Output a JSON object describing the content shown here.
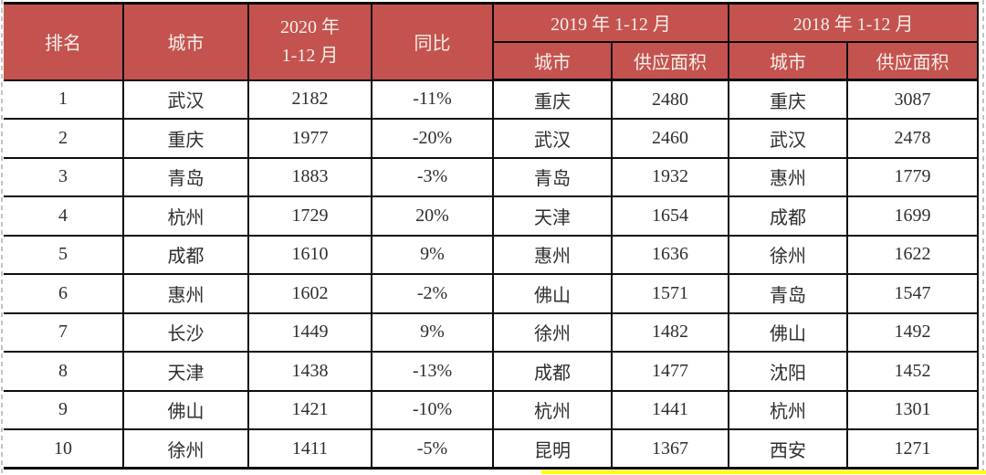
{
  "table": {
    "header": {
      "rank": "排名",
      "city": "城市",
      "col_2020_line1": "2020 年",
      "col_2020_line2": "1-12 月",
      "yoy": "同比",
      "group_2019": "2019 年 1-12 月",
      "group_2018": "2018 年 1-12 月",
      "sub_city_2019": "城市",
      "sub_supply_2019": "供应面积",
      "sub_city_2018": "城市",
      "sub_supply_2018": "供应面积"
    },
    "rows": [
      {
        "rank": "1",
        "city": "武汉",
        "supply_2020": "2182",
        "yoy": "-11%",
        "city_2019": "重庆",
        "supply_2019": "2480",
        "city_2018": "重庆",
        "supply_2018": "3087"
      },
      {
        "rank": "2",
        "city": "重庆",
        "supply_2020": "1977",
        "yoy": "-20%",
        "city_2019": "武汉",
        "supply_2019": "2460",
        "city_2018": "武汉",
        "supply_2018": "2478"
      },
      {
        "rank": "3",
        "city": "青岛",
        "supply_2020": "1883",
        "yoy": "-3%",
        "city_2019": "青岛",
        "supply_2019": "1932",
        "city_2018": "惠州",
        "supply_2018": "1779"
      },
      {
        "rank": "4",
        "city": "杭州",
        "supply_2020": "1729",
        "yoy": "20%",
        "city_2019": "天津",
        "supply_2019": "1654",
        "city_2018": "成都",
        "supply_2018": "1699"
      },
      {
        "rank": "5",
        "city": "成都",
        "supply_2020": "1610",
        "yoy": "9%",
        "city_2019": "惠州",
        "supply_2019": "1636",
        "city_2018": "徐州",
        "supply_2018": "1622"
      },
      {
        "rank": "6",
        "city": "惠州",
        "supply_2020": "1602",
        "yoy": "-2%",
        "city_2019": "佛山",
        "supply_2019": "1571",
        "city_2018": "青岛",
        "supply_2018": "1547"
      },
      {
        "rank": "7",
        "city": "长沙",
        "supply_2020": "1449",
        "yoy": "9%",
        "city_2019": "徐州",
        "supply_2019": "1482",
        "city_2018": "佛山",
        "supply_2018": "1492"
      },
      {
        "rank": "8",
        "city": "天津",
        "supply_2020": "1438",
        "yoy": "-13%",
        "city_2019": "成都",
        "supply_2019": "1477",
        "city_2018": "沈阳",
        "supply_2018": "1452"
      },
      {
        "rank": "9",
        "city": "佛山",
        "supply_2020": "1421",
        "yoy": "-10%",
        "city_2019": "杭州",
        "supply_2019": "1441",
        "city_2018": "杭州",
        "supply_2018": "1301"
      },
      {
        "rank": "10",
        "city": "徐州",
        "supply_2020": "1411",
        "yoy": "-5%",
        "city_2019": "昆明",
        "supply_2019": "1367",
        "city_2018": "西安",
        "supply_2018": "1271"
      }
    ]
  },
  "colors": {
    "header_bg": "#c45350",
    "header_text": "#f4efe8",
    "body_text": "#2e2e2e",
    "grid": "#0d0d0d",
    "page_break_dash": "#c2c2c2",
    "highlight_yellow": "#ffff00"
  }
}
